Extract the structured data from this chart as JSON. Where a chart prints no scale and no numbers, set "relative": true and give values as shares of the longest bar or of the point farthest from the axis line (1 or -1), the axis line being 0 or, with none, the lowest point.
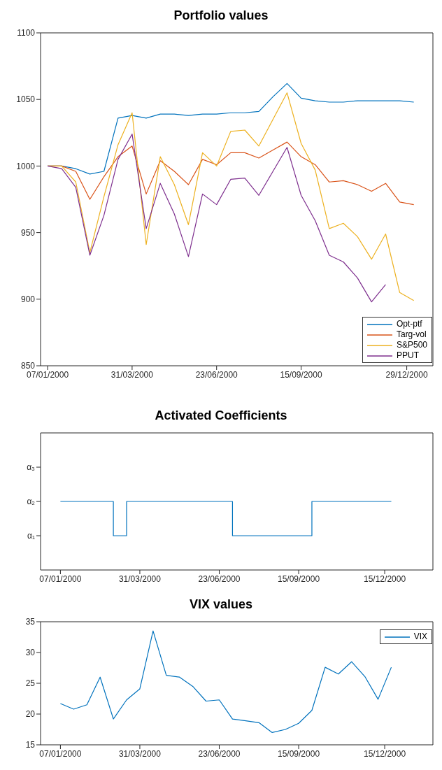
{
  "chart_data": [
    {
      "type": "line",
      "title": "Portfolio values",
      "x": [
        "2000-01-07",
        "2000-01-21",
        "2000-02-04",
        "2000-02-18",
        "2000-03-03",
        "2000-03-17",
        "2000-03-31",
        "2000-04-14",
        "2000-04-28",
        "2000-05-12",
        "2000-05-26",
        "2000-06-09",
        "2000-06-23",
        "2000-07-07",
        "2000-07-21",
        "2000-08-04",
        "2000-08-18",
        "2000-09-01",
        "2000-09-15",
        "2000-09-29",
        "2000-10-13",
        "2000-10-27",
        "2000-11-10",
        "2000-11-24",
        "2000-12-08",
        "2000-12-22",
        "2001-01-05"
      ],
      "series": [
        {
          "name": "Opt-ptf",
          "color": "#0072bd",
          "values": [
            1000,
            1000,
            998,
            994,
            996,
            1036,
            1038,
            1036,
            1039,
            1039,
            1038,
            1039,
            1039,
            1040,
            1040,
            1041,
            1052,
            1062,
            1051,
            1049,
            1048,
            1048,
            1049,
            1049,
            1049,
            1049,
            1048
          ]
        },
        {
          "name": "Targ-vol",
          "color": "#d95319",
          "values": [
            1000,
            1000,
            996,
            975,
            992,
            1007,
            1015,
            979,
            1004,
            996,
            986,
            1005,
            1001,
            1010,
            1010,
            1006,
            1012,
            1018,
            1007,
            1001,
            988,
            989,
            986,
            981,
            987,
            973,
            971
          ]
        },
        {
          "name": "S&P500",
          "color": "#edb120",
          "values": [
            1000,
            1000,
            988,
            935,
            977,
            1016,
            1040,
            941,
            1007,
            986,
            956,
            1010,
            1000,
            1026,
            1027,
            1015,
            1035,
            1055,
            1017,
            997,
            953,
            957,
            947,
            930,
            949,
            905,
            899
          ]
        },
        {
          "name": "PPUT",
          "color": "#7e2f8e",
          "values": [
            1000,
            998,
            984,
            933,
            963,
            1005,
            1024,
            953,
            987,
            964,
            932,
            979,
            971,
            990,
            991,
            978,
            996,
            1014,
            978,
            959,
            933,
            928,
            916,
            898,
            911,
            null,
            null
          ]
        }
      ],
      "xlim": [
        "1999-12-31",
        "2001-01-24"
      ],
      "xticks": [
        {
          "value": "2000-01-07",
          "label": "07/01/2000"
        },
        {
          "value": "2000-03-31",
          "label": "31/03/2000"
        },
        {
          "value": "2000-06-23",
          "label": "23/06/2000"
        },
        {
          "value": "2000-09-15",
          "label": "15/09/2000"
        },
        {
          "value": "2000-12-29",
          "label": "29/12/2000"
        }
      ],
      "ylim": [
        850,
        1100
      ],
      "yticks": [
        850,
        900,
        950,
        1000,
        1050,
        1100
      ],
      "legend": "bottom right"
    },
    {
      "type": "step",
      "title": "Activated Coefficients",
      "x": [
        "2000-01-07",
        "2000-01-21",
        "2000-02-04",
        "2000-02-18",
        "2000-03-03",
        "2000-03-17",
        "2000-03-31",
        "2000-04-14",
        "2000-04-28",
        "2000-05-12",
        "2000-05-26",
        "2000-06-09",
        "2000-06-23",
        "2000-07-07",
        "2000-07-21",
        "2000-08-04",
        "2000-08-18",
        "2000-09-01",
        "2000-09-15",
        "2000-09-29",
        "2000-10-13",
        "2000-10-27",
        "2000-11-10",
        "2000-11-24",
        "2000-12-08",
        "2000-12-22"
      ],
      "series": [
        {
          "color": "#0072bd",
          "values": [
            1,
            1,
            1,
            1,
            0.5,
            1,
            1,
            1,
            1,
            1,
            1,
            1,
            1,
            0.5,
            0.5,
            0.5,
            0.5,
            0.5,
            0.5,
            1,
            1,
            1,
            1,
            1,
            1,
            1
          ]
        }
      ],
      "xlim": [
        "1999-12-17",
        "2001-02-04"
      ],
      "xticks": [
        {
          "value": "2000-01-07",
          "label": "07/01/2000"
        },
        {
          "value": "2000-03-31",
          "label": "31/03/2000"
        },
        {
          "value": "2000-06-23",
          "label": "23/06/2000"
        },
        {
          "value": "2000-09-15",
          "label": "15/09/2000"
        },
        {
          "value": "2000-12-15",
          "label": "15/12/2000"
        }
      ],
      "relative": true,
      "annotations": [
        "α₁",
        "α₂",
        "α₃"
      ]
    },
    {
      "type": "line",
      "title": "VIX values",
      "x": [
        "2000-01-07",
        "2000-01-21",
        "2000-02-04",
        "2000-02-18",
        "2000-03-03",
        "2000-03-17",
        "2000-03-31",
        "2000-04-14",
        "2000-04-28",
        "2000-05-12",
        "2000-05-26",
        "2000-06-09",
        "2000-06-23",
        "2000-07-07",
        "2000-07-21",
        "2000-08-04",
        "2000-08-18",
        "2000-09-01",
        "2000-09-15",
        "2000-09-29",
        "2000-10-13",
        "2000-10-27",
        "2000-11-10",
        "2000-11-24",
        "2000-12-08",
        "2000-12-22"
      ],
      "series": [
        {
          "name": "VIX",
          "color": "#0072bd",
          "values": [
            21.7,
            20.8,
            21.5,
            26.0,
            19.2,
            22.3,
            24.1,
            33.5,
            26.3,
            26.0,
            24.5,
            22.1,
            22.3,
            19.2,
            18.9,
            18.6,
            17.0,
            17.5,
            18.5,
            20.6,
            27.6,
            26.5,
            28.5,
            26.1,
            22.4,
            27.6
          ]
        }
      ],
      "xlim": [
        "1999-12-17",
        "2001-02-04"
      ],
      "xticks": [
        {
          "value": "2000-01-07",
          "label": "07/01/2000"
        },
        {
          "value": "2000-03-31",
          "label": "31/03/2000"
        },
        {
          "value": "2000-06-23",
          "label": "23/06/2000"
        },
        {
          "value": "2000-09-15",
          "label": "15/09/2000"
        },
        {
          "value": "2000-12-15",
          "label": "15/12/2000"
        }
      ],
      "ylim": [
        15,
        35
      ],
      "yticks": [
        15,
        20,
        25,
        30,
        35
      ],
      "legend": "top right"
    }
  ]
}
